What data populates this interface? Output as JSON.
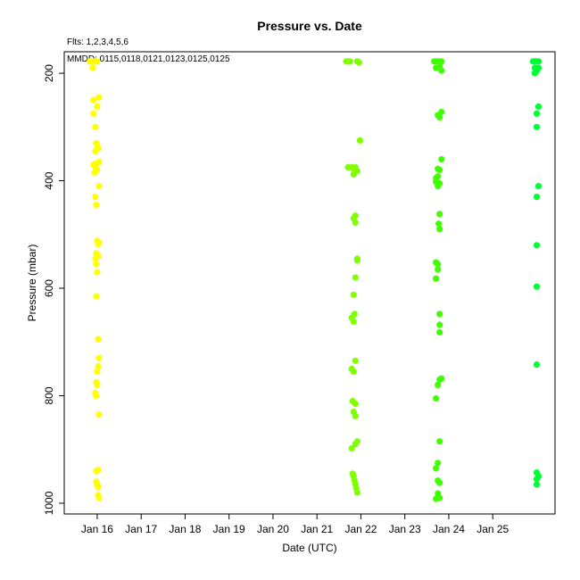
{
  "chart_data": {
    "type": "scatter",
    "title": "Pressure  vs. Date",
    "subtitle_flts": "Flts: 1,2,3,4,5,6",
    "subtitle_mmdd": "MMDD: 0115,0118,0121,0123,0125,0125",
    "xlabel": "Date (UTC)",
    "ylabel": "Pressure (mbar)",
    "x_ticks": [
      {
        "x": "2024-01-16",
        "label": "Jan 16"
      },
      {
        "x": "2024-01-17",
        "label": "Jan 17"
      },
      {
        "x": "2024-01-18",
        "label": "Jan 18"
      },
      {
        "x": "2024-01-19",
        "label": "Jan 19"
      },
      {
        "x": "2024-01-20",
        "label": "Jan 20"
      },
      {
        "x": "2024-01-21",
        "label": "Jan 21"
      },
      {
        "x": "2024-01-22",
        "label": "Jan 22"
      },
      {
        "x": "2024-01-23",
        "label": "Jan 23"
      },
      {
        "x": "2024-01-24",
        "label": "Jan 24"
      },
      {
        "x": "2024-01-25",
        "label": "Jan 25"
      }
    ],
    "y_ticks": [
      200,
      400,
      600,
      800,
      1000
    ],
    "xlim": [
      "2024-01-15T06:00",
      "2024-01-26T10:00"
    ],
    "ylim": [
      1020,
      160
    ],
    "y_reversed": true,
    "grid": false,
    "legend": "none",
    "series": [
      {
        "color": "#ffff00",
        "x": [
          "2024-01-15T20:00",
          "2024-01-15T21:00",
          "2024-01-15T22:00",
          "2024-01-15T23:00",
          "2024-01-16T00:00",
          "2024-01-15T21:30",
          "2024-01-15T22:00",
          "2024-01-16T01:00",
          "2024-01-15T22:00",
          "2024-01-16T00:00",
          "2024-01-15T23:00",
          "2024-01-15T23:30",
          "2024-01-16T00:00",
          "2024-01-16T00:30",
          "2024-01-15T23:00",
          "2024-01-16T01:00",
          "2024-01-15T22:00",
          "2024-01-15T23:00",
          "2024-01-15T23:30",
          "2024-01-16T00:00",
          "2024-01-15T22:30",
          "2024-01-16T01:00",
          "2024-01-15T23:00",
          "2024-01-15T23:30",
          "2024-01-16T00:00",
          "2024-01-16T01:00",
          "2024-01-16T00:30",
          "2024-01-15T23:30",
          "2024-01-16T00:30",
          "2024-01-15T23:00",
          "2024-01-15T23:30",
          "2024-01-16T00:00",
          "2024-01-15T23:30",
          "2024-01-16T00:30",
          "2024-01-16T01:00",
          "2024-01-16T00:30",
          "2024-01-16T00:00",
          "2024-01-15T23:30",
          "2024-01-16T00:00",
          "2024-01-15T23:00",
          "2024-01-15T23:30",
          "2024-01-16T01:00",
          "2024-01-15T23:30",
          "2024-01-16T00:30",
          "2024-01-15T23:30",
          "2024-01-16T00:00",
          "2024-01-16T00:30",
          "2024-01-16T00:30",
          "2024-01-16T01:00"
        ],
        "y": [
          178,
          178,
          178,
          178,
          178,
          190,
          250,
          245,
          275,
          262,
          300,
          330,
          335,
          340,
          345,
          365,
          370,
          375,
          368,
          380,
          385,
          410,
          430,
          445,
          512,
          515,
          518,
          535,
          540,
          545,
          555,
          570,
          615,
          695,
          730,
          745,
          755,
          775,
          780,
          795,
          800,
          835,
          940,
          938,
          960,
          965,
          970,
          985,
          990
        ]
      },
      {
        "color": "#80ff00",
        "x": [
          "2024-01-21T16:00",
          "2024-01-21T17:00",
          "2024-01-21T18:00",
          "2024-01-21T22:00",
          "2024-01-21T23:00",
          "2024-01-21T23:30",
          "2024-01-21T17:00",
          "2024-01-21T19:00",
          "2024-01-21T20:00",
          "2024-01-21T21:00",
          "2024-01-21T22:00",
          "2024-01-21T20:00",
          "2024-01-21T21:00",
          "2024-01-21T20:00",
          "2024-01-21T21:00",
          "2024-01-21T22:00",
          "2024-01-21T22:00",
          "2024-01-21T21:00",
          "2024-01-21T20:00",
          "2024-01-21T20:30",
          "2024-01-21T19:00",
          "2024-01-21T20:00",
          "2024-01-21T21:00",
          "2024-01-21T19:00",
          "2024-01-21T20:00",
          "2024-01-21T19:30",
          "2024-01-21T21:00",
          "2024-01-21T20:00",
          "2024-01-21T21:00",
          "2024-01-21T22:00",
          "2024-01-21T21:00",
          "2024-01-21T19:00",
          "2024-01-21T19:30",
          "2024-01-21T20:00",
          "2024-01-21T20:30",
          "2024-01-21T21:00",
          "2024-01-21T21:30",
          "2024-01-21T22:00"
        ],
        "y": [
          178,
          178,
          178,
          178,
          180,
          325,
          375,
          375,
          378,
          375,
          382,
          388,
          465,
          470,
          478,
          545,
          548,
          580,
          612,
          648,
          655,
          662,
          735,
          750,
          755,
          810,
          815,
          830,
          838,
          885,
          890,
          898,
          945,
          950,
          958,
          965,
          972,
          980
        ]
      },
      {
        "color": "#40ff00",
        "x": [
          "2024-01-23T16:00",
          "2024-01-23T17:00",
          "2024-01-23T19:00",
          "2024-01-23T20:00",
          "2024-01-23T17:00",
          "2024-01-23T19:00",
          "2024-01-23T20:00",
          "2024-01-23T18:00",
          "2024-01-23T20:00",
          "2024-01-23T19:00",
          "2024-01-23T20:00",
          "2024-01-23T19:00",
          "2024-01-23T18:00",
          "2024-01-23T17:00",
          "2024-01-23T18:00",
          "2024-01-23T17:00",
          "2024-01-23T18:00",
          "2024-01-23T19:00",
          "2024-01-23T19:00",
          "2024-01-23T18:30",
          "2024-01-23T19:00",
          "2024-01-23T18:00",
          "2024-01-23T17:00",
          "2024-01-23T18:00",
          "2024-01-23T17:00",
          "2024-01-23T19:00",
          "2024-01-23T19:00",
          "2024-01-23T19:00",
          "2024-01-23T19:00",
          "2024-01-23T20:00",
          "2024-01-23T18:00",
          "2024-01-23T17:00",
          "2024-01-23T19:00",
          "2024-01-23T18:00",
          "2024-01-23T17:00",
          "2024-01-23T18:00",
          "2024-01-23T19:00",
          "2024-01-23T17:00",
          "2024-01-23T18:00",
          "2024-01-23T19:00"
        ],
        "y": [
          178,
          178,
          178,
          178,
          190,
          188,
          195,
          278,
          272,
          282,
          360,
          380,
          378,
          395,
          392,
          402,
          410,
          405,
          462,
          480,
          490,
          555,
          552,
          565,
          582,
          648,
          668,
          682,
          770,
          768,
          780,
          805,
          885,
          925,
          935,
          982,
          990,
          992,
          958,
          962
        ]
      },
      {
        "color": "#00ff33",
        "x": [
          "2024-01-25T22:00",
          "2024-01-25T23:00",
          "2024-01-26T00:00",
          "2024-01-26T01:00",
          "2024-01-25T23:00",
          "2024-01-26T00:00",
          "2024-01-26T01:00",
          "2024-01-25T23:00",
          "2024-01-26T01:00",
          "2024-01-26T00:00",
          "2024-01-26T00:00",
          "2024-01-26T01:00",
          "2024-01-26T00:00",
          "2024-01-26T00:00",
          "2024-01-26T00:00",
          "2024-01-26T00:00",
          "2024-01-26T00:00",
          "2024-01-26T00:00",
          "2024-01-26T01:00",
          "2024-01-26T00:00"
        ],
        "y": [
          178,
          178,
          178,
          178,
          190,
          195,
          190,
          200,
          262,
          275,
          300,
          410,
          430,
          520,
          597,
          742,
          943,
          955,
          950,
          965
        ]
      }
    ]
  }
}
